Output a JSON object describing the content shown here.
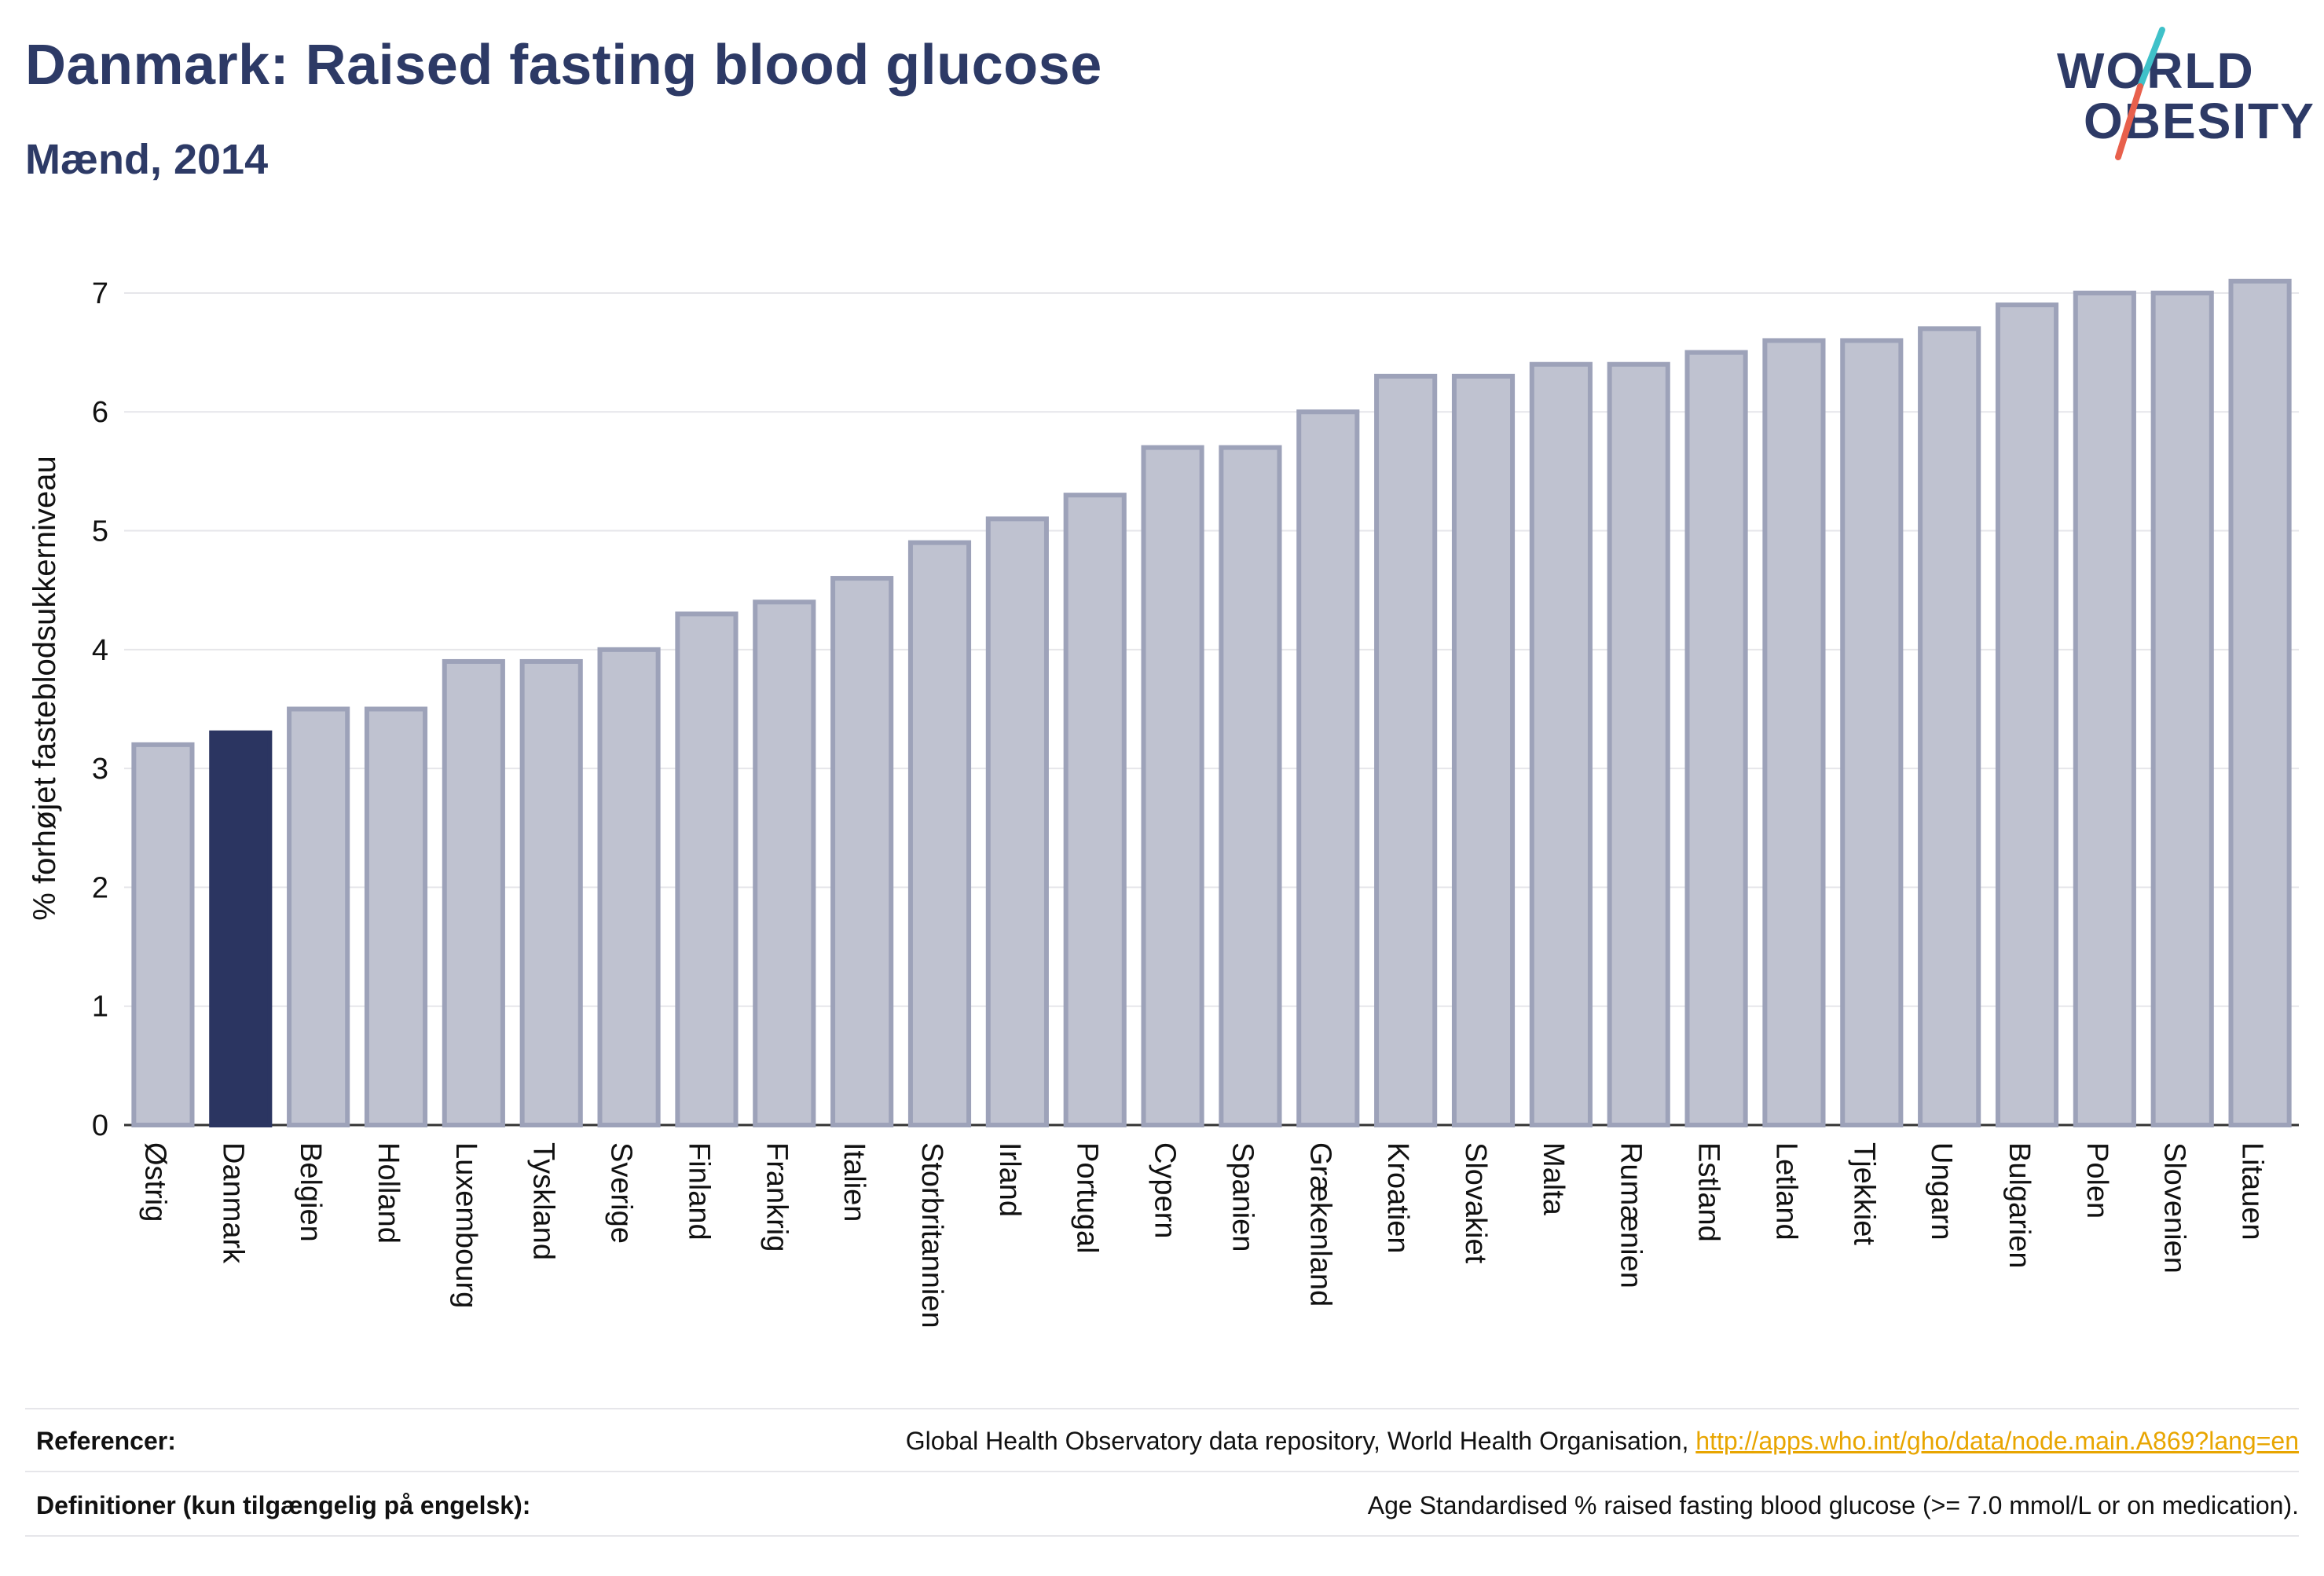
{
  "header": {
    "title": "Danmark: Raised fasting blood glucose",
    "subtitle": "Mænd, 2014"
  },
  "logo": {
    "line1": "WORLD",
    "line2": "OBESITY",
    "accent_colors": [
      "#3fc1c9",
      "#e8604c"
    ]
  },
  "colors": {
    "bar": "#bfc2d0",
    "bar_stroke": "#9da2b9",
    "highlight": "#2b3561",
    "grid": "#e6e6ea",
    "text": "#2b3561"
  },
  "chart_data": {
    "type": "bar",
    "ylabel": "% forhøjet fasteblodsukkerniveau",
    "xlabel": "",
    "ylim": [
      0,
      7.35
    ],
    "yticks": [
      0,
      1,
      2,
      3,
      4,
      5,
      6,
      7
    ],
    "grid": true,
    "highlight_category": "Danmark",
    "categories": [
      "Østrig",
      "Danmark",
      "Belgien",
      "Holland",
      "Luxembourg",
      "Tyskland",
      "Sverige",
      "Finland",
      "Frankrig",
      "Italien",
      "Storbritannien",
      "Irland",
      "Portugal",
      "Cypern",
      "Spanien",
      "Grækenland",
      "Kroatien",
      "Slovakiet",
      "Malta",
      "Rumænien",
      "Estland",
      "Letland",
      "Tjekkiet",
      "Ungarn",
      "Bulgarien",
      "Polen",
      "Slovenien",
      "Litauen"
    ],
    "values": [
      3.2,
      3.3,
      3.5,
      3.5,
      3.9,
      3.9,
      4.0,
      4.3,
      4.4,
      4.6,
      4.9,
      5.1,
      5.3,
      5.7,
      5.7,
      6.0,
      6.3,
      6.3,
      6.4,
      6.4,
      6.5,
      6.6,
      6.6,
      6.7,
      6.9,
      7.0,
      7.0,
      7.1
    ]
  },
  "footer": {
    "references_label": "Referencer:",
    "references_text": "Global Health Observatory data repository, World Health Organisation, ",
    "references_link": "http://apps.who.int/gho/data/node.main.A869?lang=en",
    "definitions_label": "Definitioner (kun tilgængelig på engelsk):",
    "definitions_text": "Age Standardised % raised fasting blood glucose (>= 7.0 mmol/L or on medication)."
  }
}
